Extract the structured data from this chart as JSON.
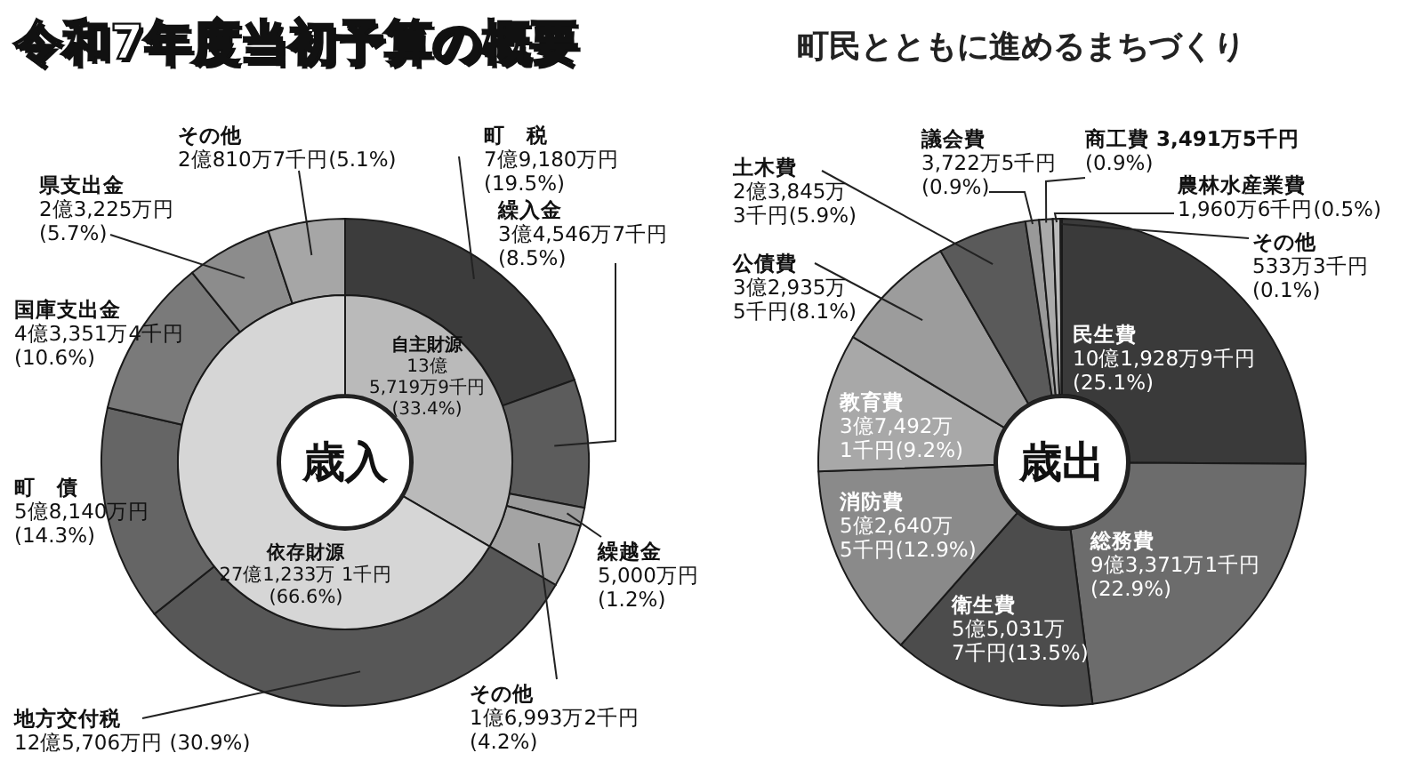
{
  "chart_data": [
    {
      "type": "donut",
      "title": "令和7年度当初予算の概要",
      "categories": [
        "町　税",
        "繰入金",
        "繰越金",
        "その他",
        "地方交付税",
        "町　債",
        "国庫支出金",
        "県支出金",
        "その他"
      ],
      "values": [
        19.5,
        8.5,
        1.2,
        4.2,
        30.9,
        14.3,
        10.6,
        5.7,
        5.1
      ],
      "colors": [
        "#3c3c3c",
        "#5c5c5c",
        "#9c9c9c",
        "#a4a4a4",
        "#575757",
        "#656565",
        "#7a7a7a",
        "#8c8c8c",
        "#a6a6a6"
      ],
      "value_labels": [
        "7億9,180万円\n(19.5%)",
        "3億4,546万7千円\n(8.5%)",
        "5,000万円\n(1.2%)",
        "1億6,993万2千円\n(4.2%)",
        "12億5,706万円 (30.9%)",
        "5億8,140万円\n(14.3%)",
        "4億3,351万4千円\n(10.6%)",
        "2億3,225万円\n(5.7%)",
        "2億810万7千円(5.1%)"
      ]
    },
    {
      "type": "donut",
      "title": "歳入",
      "categories": [
        "自主財源",
        "依存財源"
      ],
      "values": [
        33.4,
        66.6
      ],
      "colors": [
        "#bababa",
        "#d6d6d6"
      ],
      "value_labels": [
        "13億\n5,719万9千円\n(33.4%)",
        "27億1,233万 1千円\n(66.6%)"
      ]
    },
    {
      "type": "donut",
      "title": "歳出",
      "subtitle": "町民とともに進めるまちづくり",
      "categories": [
        "民生費",
        "総務費",
        "衛生費",
        "消防費",
        "教育費",
        "公債費",
        "土木費",
        "議会費",
        "商工費",
        "農林水産業費",
        "その他"
      ],
      "values": [
        25.1,
        22.9,
        13.5,
        12.9,
        9.2,
        8.1,
        5.9,
        0.9,
        0.9,
        0.5,
        0.1
      ],
      "colors": [
        "#3a3a3a",
        "#6c6c6c",
        "#4c4c4c",
        "#8a8a8a",
        "#a8a8a8",
        "#9c9c9c",
        "#5a5a5a",
        "#999999",
        "#aaaaaa",
        "#bbbbbb",
        "#dddddd"
      ],
      "value_labels": [
        "10億1,928万9千円\n(25.1%)",
        "9億3,371万1千円\n(22.9%)",
        "5億5,031万\n7千円(13.5%)",
        "5億2,640万\n5千円(12.9%)",
        "3億7,492万\n1千円(9.2%)",
        "3億2,935万\n5千円(8.1%)",
        "2億3,845万\n3千円(5.9%)",
        "3,722万5千円\n(0.9%)",
        "3,491万5千円\n(0.9%)",
        "1,960万6千円(0.5%)",
        "533万3千円\n(0.1%)"
      ]
    }
  ]
}
